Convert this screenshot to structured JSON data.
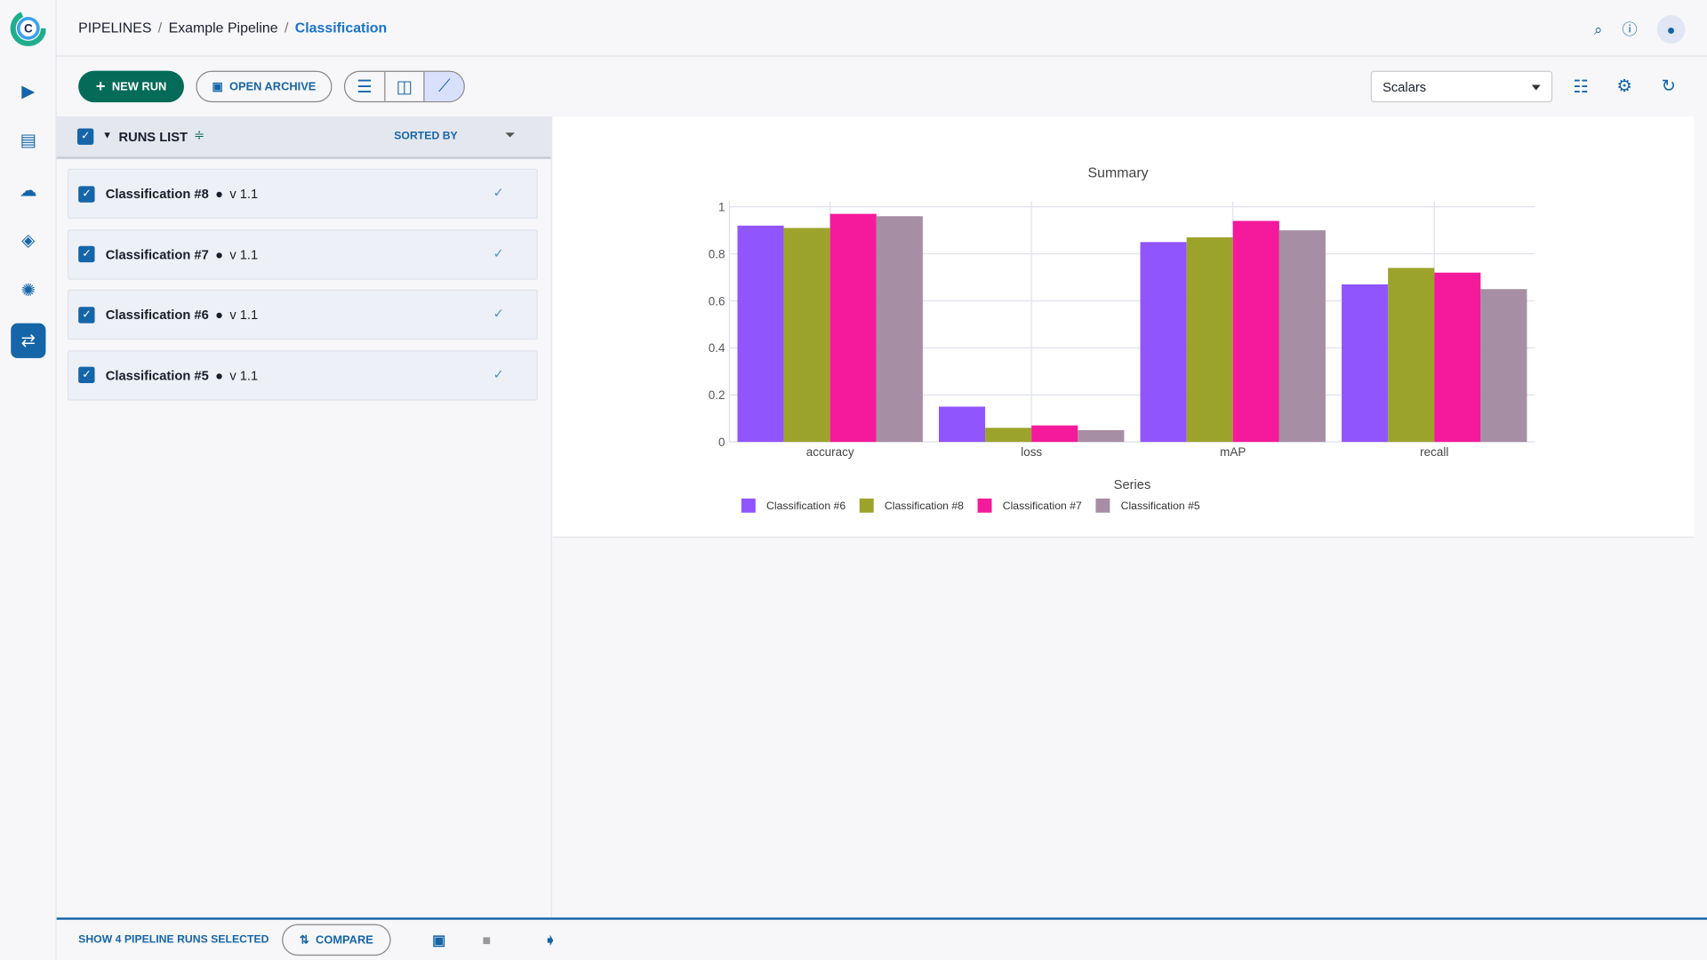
{
  "breadcrumb": [
    "PIPELINES",
    "Example Pipeline",
    "Classification"
  ],
  "toolbar": {
    "new_run": "NEW RUN",
    "open_archive": "OPEN ARCHIVE",
    "metric_select": "Scalars"
  },
  "runs_list": {
    "title": "RUNS LIST",
    "sorted_by": "SORTED BY",
    "rows": [
      {
        "name": "Classification #8",
        "version": "v 1.1",
        "status": "completed"
      },
      {
        "name": "Classification #7",
        "version": "v 1.1",
        "status": "completed"
      },
      {
        "name": "Classification #6",
        "version": "v 1.1",
        "status": "completed"
      },
      {
        "name": "Classification #5",
        "version": "v 1.1",
        "status": "completed"
      }
    ]
  },
  "footer": {
    "selected_text": "SHOW 4 PIPELINE RUNS SELECTED",
    "compare": "COMPARE"
  },
  "chart_data": {
    "type": "bar",
    "title": "Summary",
    "legend_title": "Series",
    "legend_placement": "bottom",
    "grid": true,
    "categories": [
      "accuracy",
      "loss",
      "mAP",
      "recall"
    ],
    "ylim": [
      0,
      1
    ],
    "yticks": [
      "0",
      "0.2",
      "0.4",
      "0.6",
      "0.8",
      "1"
    ],
    "series": [
      {
        "name": "Classification #6",
        "color": "#9155fd",
        "values": [
          0.92,
          0.15,
          0.85,
          0.67
        ]
      },
      {
        "name": "Classification #8",
        "color": "#9ca32b",
        "values": [
          0.91,
          0.06,
          0.87,
          0.74
        ]
      },
      {
        "name": "Classification #7",
        "color": "#f5199b",
        "values": [
          0.97,
          0.07,
          0.94,
          0.72
        ]
      },
      {
        "name": "Classification #5",
        "color": "#a68ea4",
        "values": [
          0.96,
          0.05,
          0.9,
          0.65
        ]
      }
    ]
  }
}
